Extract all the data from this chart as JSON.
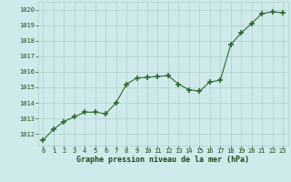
{
  "x": [
    0,
    1,
    2,
    3,
    4,
    5,
    6,
    7,
    8,
    9,
    10,
    11,
    12,
    13,
    14,
    15,
    16,
    17,
    18,
    19,
    20,
    21,
    22,
    23
  ],
  "y": [
    1011.6,
    1012.3,
    1012.8,
    1013.1,
    1013.4,
    1013.4,
    1013.3,
    1014.0,
    1015.2,
    1015.6,
    1015.65,
    1015.7,
    1015.75,
    1015.2,
    1014.85,
    1014.75,
    1015.35,
    1015.45,
    1017.75,
    1018.5,
    1019.1,
    1019.75,
    1019.85,
    1019.8
  ],
  "line_color": "#2d6a2d",
  "marker": "+",
  "marker_size": 5,
  "marker_lw": 1.2,
  "bg_color": "#ceeaea",
  "grid_color": "#b0cccc",
  "xlabel": "Graphe pression niveau de la mer (hPa)",
  "xlabel_color": "#1a4a1a",
  "tick_color": "#1a4a1a",
  "ylim": [
    1011.25,
    1020.5
  ],
  "xlim": [
    -0.5,
    23.5
  ],
  "yticks": [
    1012,
    1013,
    1014,
    1015,
    1016,
    1017,
    1018,
    1019,
    1020
  ],
  "xticks": [
    0,
    1,
    2,
    3,
    4,
    5,
    6,
    7,
    8,
    9,
    10,
    11,
    12,
    13,
    14,
    15,
    16,
    17,
    18,
    19,
    20,
    21,
    22,
    23
  ]
}
